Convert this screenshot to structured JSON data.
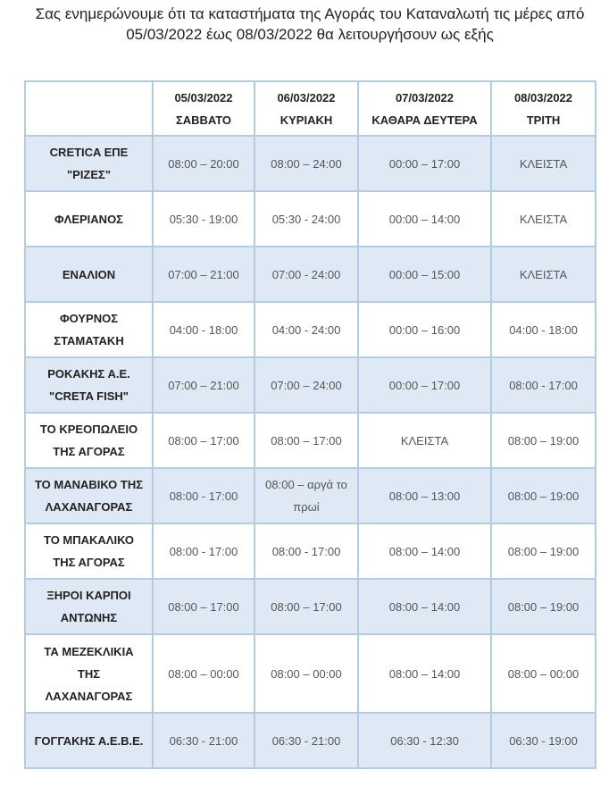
{
  "intro": {
    "line1": "Σας ενημερώνουμε ότι τα καταστήματα της Αγοράς του Καταναλωτή τις μέρες από",
    "line2": "05/03/2022 έως 08/03/2022 θα λειτουργήσουν ως εξής"
  },
  "table": {
    "columns": [
      {
        "date": "05/03/2022",
        "day": "ΣΑΒΒΑΤΟ"
      },
      {
        "date": "06/03/2022",
        "day": "ΚΥΡΙΑΚΗ"
      },
      {
        "date": "07/03/2022",
        "day": "ΚΑΘΑΡΑ ΔΕΥΤΕΡΑ"
      },
      {
        "date": "08/03/2022",
        "day": "ΤΡΙΤΗ"
      }
    ],
    "rows": [
      {
        "name1": "CRETICA ΕΠΕ",
        "name2": "\"ΡΙΖΕΣ\"",
        "name3": "",
        "hours": [
          "08:00 – 20:00",
          "08:00 – 24:00",
          "00:00 – 17:00",
          "ΚΛΕΙΣΤΑ"
        ]
      },
      {
        "name1": "ΦΛΕΡΙΑΝΟΣ",
        "name2": "",
        "name3": "",
        "hours": [
          "05:30 - 19:00",
          "05:30 - 24:00",
          "00:00 – 14:00",
          "ΚΛΕΙΣΤΑ"
        ]
      },
      {
        "name1": "ΕΝΑΛΙΟΝ",
        "name2": "",
        "name3": "",
        "hours": [
          "07:00 – 21:00",
          "07:00 - 24:00",
          "00:00 – 15:00",
          "ΚΛΕΙΣΤΑ"
        ]
      },
      {
        "name1": "ΦΟΥΡΝΟΣ",
        "name2": "ΣΤΑΜΑΤΑΚΗ",
        "name3": "",
        "hours": [
          "04:00 - 18:00",
          "04:00 - 24:00",
          "00:00 – 16:00",
          "04:00 - 18:00"
        ]
      },
      {
        "name1": "ΡΟΚΑΚΗΣ Α.Ε.",
        "name2": "\"CRETA FISH\"",
        "name3": "",
        "hours": [
          "07:00 – 21:00",
          "07:00 – 24:00",
          "00:00 – 17:00",
          "08:00 - 17:00"
        ]
      },
      {
        "name1": "ΤΟ ΚΡΕΟΠΩΛΕΙΟ",
        "name2": "ΤΗΣ ΑΓΟΡΑΣ",
        "name3": "",
        "hours": [
          "08:00 – 17:00",
          "08:00 – 17:00",
          "ΚΛΕΙΣΤΑ",
          "08:00 – 19:00"
        ]
      },
      {
        "name1": "ΤΟ ΜΑΝΑΒΙΚΟ ΤΗΣ",
        "name2": "ΛΑΧΑΝΑΓΟΡΑΣ",
        "name3": "",
        "hours": [
          "08:00 - 17:00",
          "08:00 – αργά το πρωί",
          "08:00 – 13:00",
          "08:00 – 19:00"
        ]
      },
      {
        "name1": "ΤΟ ΜΠΑΚΑΛΙΚΟ",
        "name2": "ΤΗΣ ΑΓΟΡΑΣ",
        "name3": "",
        "hours": [
          "08:00 - 17:00",
          "08:00 - 17:00",
          "08:00 – 14:00",
          "08:00 – 19:00"
        ]
      },
      {
        "name1": "ΞΗΡΟΙ ΚΑΡΠΟΙ",
        "name2": "ΑΝΤΩΝΗΣ",
        "name3": "",
        "hours": [
          "08:00 – 17:00",
          "08:00 – 17:00",
          "08:00 – 14:00",
          "08:00 – 19:00"
        ]
      },
      {
        "name1": "ΤΑ ΜΕΖΕΚΛΙΚΙΑ",
        "name2": "ΤΗΣ",
        "name3": "ΛΑΧΑΝΑΓΟΡΑΣ",
        "hours": [
          "08:00 – 00:00",
          "08:00 – 00:00",
          "08:00 – 14:00",
          "08:00 – 00:00"
        ]
      },
      {
        "name1": "ΓΟΓΓΑΚΗΣ Α.Ε.Β.Ε.",
        "name2": "",
        "name3": "",
        "hours": [
          "06:30 - 21:00",
          "06:30 - 21:00",
          "06:30 - 12:30",
          "06:30 - 19:00"
        ]
      }
    ]
  },
  "colors": {
    "border": "#b3cce0",
    "alt_row": "#dfe9f5"
  }
}
